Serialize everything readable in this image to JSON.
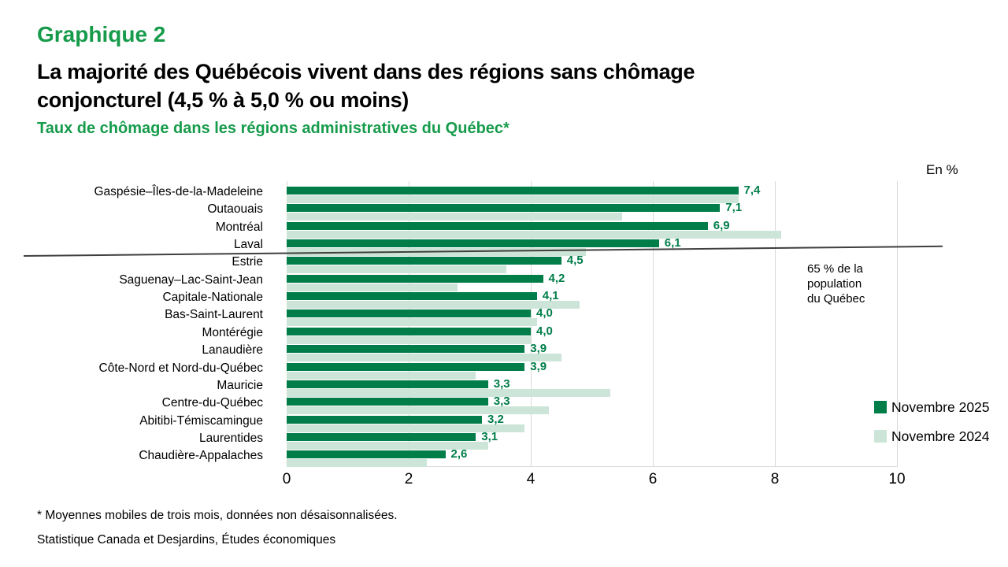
{
  "header": {
    "kicker": "Graphique 2",
    "title_line1": "La majorité des Québécois vivent dans des régions sans chômage",
    "title_line2": "conjoncturel (4,5 % à 5,0 % ou moins)",
    "subtitle": "Taux de chômage dans les régions administratives du Québec*"
  },
  "colors": {
    "title_green": "#169b4b",
    "bar_dark_green": "#007d49",
    "bar_light_green": "#cde5d8",
    "gridline": "#d9d9d9",
    "separator": "#3f3f3f"
  },
  "chart_data": {
    "type": "bar",
    "orientation": "horizontal",
    "title": "Taux de chômage dans les régions administratives du Québec*",
    "axis_unit": "En %",
    "xlim": [
      0,
      10
    ],
    "xticks": [
      0,
      2,
      4,
      6,
      8,
      10
    ],
    "grid": true,
    "legend_position": "right-bottom",
    "categories": [
      "Gaspésie–Îles-de-la-Madeleine",
      "Outaouais",
      "Montréal",
      "Laval",
      "Estrie",
      "Saguenay–Lac-Saint-Jean",
      "Capitale-Nationale",
      "Bas-Saint-Laurent",
      "Montérégie",
      "Lanaudière",
      "Côte-Nord et Nord-du-Québec",
      "Mauricie",
      "Centre-du-Québec",
      "Abitibi-Témiscamingue",
      "Laurentides",
      "Chaudière-Appalaches"
    ],
    "series": [
      {
        "name": "Novembre 2025",
        "color": "#007d49",
        "data_labels": true,
        "values": [
          7.4,
          7.1,
          6.9,
          6.1,
          4.5,
          4.2,
          4.1,
          4.0,
          4.0,
          3.9,
          3.9,
          3.3,
          3.3,
          3.2,
          3.1,
          2.6
        ]
      },
      {
        "name": "Novembre 2024",
        "color": "#cde5d8",
        "data_labels": false,
        "values": [
          7.4,
          5.5,
          8.1,
          4.9,
          3.6,
          2.8,
          4.8,
          4.1,
          4.0,
          4.5,
          3.1,
          5.3,
          4.3,
          3.9,
          3.3,
          2.3
        ]
      }
    ],
    "annotation": {
      "lines": [
        "65 % de la",
        "population",
        "du Québec"
      ],
      "separator_note": "line separating regions above/below the 65% population threshold"
    }
  },
  "footnotes": {
    "note1": "* Moyennes mobiles de trois mois, données non désaisonnalisées.",
    "note2": "Statistique Canada et Desjardins, Études économiques"
  }
}
